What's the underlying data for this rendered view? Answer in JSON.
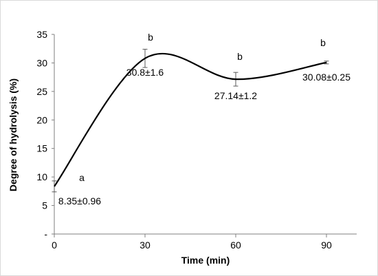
{
  "chart_data": {
    "type": "line",
    "xlabel": "Time (min)",
    "ylabel": "Degree of hydrolysis (%)",
    "x": [
      0,
      30,
      60,
      90
    ],
    "series": [
      {
        "values": [
          8.35,
          30.8,
          27.14,
          30.08
        ],
        "errors": [
          0.96,
          1.6,
          1.2,
          0.25
        ],
        "value_labels": [
          "8.35±0.96",
          "30.8±1.6",
          "27.14±1.2",
          "30.08±0.25"
        ],
        "significance_letters": [
          "a",
          "b",
          "b",
          "b"
        ]
      }
    ],
    "xlim": [
      0,
      100
    ],
    "ylim": [
      0,
      35
    ],
    "x_ticks": [
      "0",
      "30",
      "60",
      "90"
    ],
    "y_ticks": [
      "-",
      "5",
      "10",
      "15",
      "20",
      "25",
      "30",
      "35"
    ],
    "smoothed_line": true,
    "grid": false,
    "legend": "none",
    "colors": {
      "line": "#000000",
      "axis": "#7f7f7f",
      "error_bar": "#595959"
    }
  }
}
